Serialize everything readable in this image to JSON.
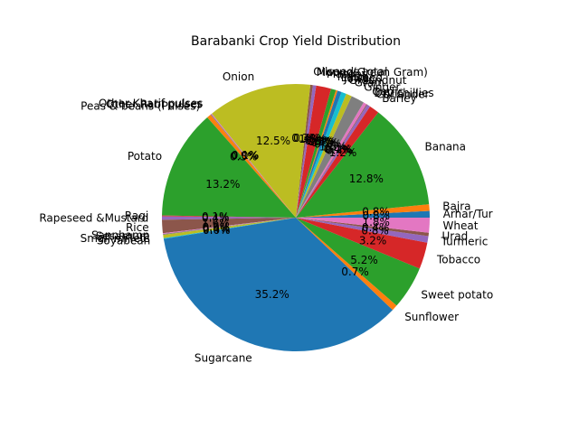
{
  "chart_data": {
    "type": "pie",
    "title": "Barabanki Crop Yield Distribution",
    "slices": [
      {
        "label": "Arhar/Tur",
        "value": 0.8,
        "pct_label": "0.8%",
        "color": "#1f77b4"
      },
      {
        "label": "Bajra",
        "value": 0.8,
        "pct_label": "0.8%",
        "color": "#ff7f0e"
      },
      {
        "label": "Banana",
        "value": 12.8,
        "pct_label": "12.8%",
        "color": "#2ca02c"
      },
      {
        "label": "Barley",
        "value": 1.2,
        "pct_label": "1.2%",
        "color": "#d62728"
      },
      {
        "label": "Coriander",
        "value": 0.4,
        "pct_label": "0.4%",
        "color": "#9467bd"
      },
      {
        "label": "Dry chillies",
        "value": 0.1,
        "pct_label": "0.1%",
        "color": "#8c564b"
      },
      {
        "label": "Garlic",
        "value": 0.4,
        "pct_label": "0.4%",
        "color": "#e377c2"
      },
      {
        "label": "Ginger",
        "value": 1.6,
        "pct_label": "1.6%",
        "color": "#7f7f7f"
      },
      {
        "label": "Gram",
        "value": 0.7,
        "pct_label": "0.7%",
        "color": "#bcbd22"
      },
      {
        "label": "Groundnut",
        "value": 0.6,
        "pct_label": "0.6%",
        "color": "#17becf"
      },
      {
        "label": "Jowar",
        "value": 0.5,
        "pct_label": "0.5%",
        "color": "#1f77b4"
      },
      {
        "label": "Linseed",
        "value": 0.2,
        "pct_label": "0.2%",
        "color": "#ff7f0e"
      },
      {
        "label": "Maize",
        "value": 0.6,
        "pct_label": "0.6%",
        "color": "#2ca02c"
      },
      {
        "label": "Masoor",
        "value": 1.8,
        "pct_label": "1.8%",
        "color": "#d62728"
      },
      {
        "label": "Moong(Green Gram)",
        "value": 0.4,
        "pct_label": "0.4%",
        "color": "#9467bd"
      },
      {
        "label": "Oilseeds total",
        "value": 0.3,
        "pct_label": "0.3%",
        "color": "#8c564b"
      },
      {
        "label": "Onion",
        "value": 12.5,
        "pct_label": "12.5%",
        "color": "#bcbd22"
      },
      {
        "label": "Other Kharif pulses",
        "value": 0.1,
        "pct_label": "0.1%",
        "color": "#e377c2"
      },
      {
        "label": "Other Rabi pulses",
        "value": 0.1,
        "pct_label": "0.0%",
        "color": "#7f7f7f"
      },
      {
        "label": "Peas & beans (Pulses)",
        "value": 0.5,
        "pct_label": "0.5%",
        "color": "#ff7f0e"
      },
      {
        "label": "Potato",
        "value": 13.2,
        "pct_label": "13.2%",
        "color": "#2ca02c"
      },
      {
        "label": "Ragi",
        "value": 0.1,
        "pct_label": "0.1%",
        "color": "#d62728"
      },
      {
        "label": "Rapeseed &Mustard",
        "value": 0.4,
        "pct_label": "0.4%",
        "color": "#9467bd"
      },
      {
        "label": "Rice",
        "value": 1.6,
        "pct_label": "1.6%",
        "color": "#8c564b"
      },
      {
        "label": "Sannhamp",
        "value": 0.1,
        "pct_label": "0.1%",
        "color": "#e377c2"
      },
      {
        "label": "Sesamum",
        "value": 0.1,
        "pct_label": "0.0%",
        "color": "#7f7f7f"
      },
      {
        "label": "Small millets",
        "value": 0.4,
        "pct_label": "0.4%",
        "color": "#bcbd22"
      },
      {
        "label": "Soyabean",
        "value": 0.1,
        "pct_label": "0.0%",
        "color": "#17becf"
      },
      {
        "label": "Sugarcane",
        "value": 35.2,
        "pct_label": "35.2%",
        "color": "#1f77b4"
      },
      {
        "label": "Sunflower",
        "value": 0.7,
        "pct_label": "0.7%",
        "color": "#ff7f0e"
      },
      {
        "label": "Sweet potato",
        "value": 5.2,
        "pct_label": "5.2%",
        "color": "#2ca02c"
      },
      {
        "label": "Tobacco",
        "value": 3.2,
        "pct_label": "3.2%",
        "color": "#d62728"
      },
      {
        "label": "Turmeric",
        "value": 0.8,
        "pct_label": "0.8%",
        "color": "#9467bd"
      },
      {
        "label": "Urad",
        "value": 0.4,
        "pct_label": "0.4%",
        "color": "#8c564b"
      },
      {
        "label": "Wheat",
        "value": 1.8,
        "pct_label": "1.8%",
        "color": "#e377c2"
      }
    ]
  }
}
